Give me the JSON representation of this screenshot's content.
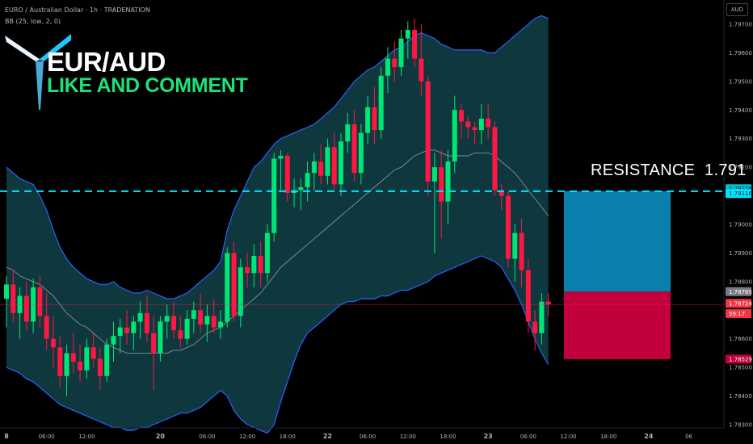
{
  "header": {
    "symbol_line": "EURO / Australian Dollar · 1h · TRADENATION",
    "indicator_line": "BB (25, low, 2, 0)"
  },
  "currency_badge": "AUD",
  "brand": {
    "title": "EUR/AUD",
    "subtitle": "LIKE AND COMMENT"
  },
  "resistance": {
    "label": "RESISTANCE",
    "level_text": "1.791",
    "price": 1.79116,
    "color": "#00e5ff"
  },
  "position_box": {
    "target_top": 1.79116,
    "entry": 1.78765,
    "stop_bottom": 1.78529,
    "target_color": "#0b7fad",
    "stop_color": "#c2003b"
  },
  "chart_data": {
    "type": "candlestick",
    "instrument": "EUR/AUD",
    "timeframe": "1h",
    "y_axis": {
      "min": 1.783,
      "max": 1.797,
      "ticks": [
        "1.79700",
        "1.79600",
        "1.79500",
        "1.79400",
        "1.79300",
        "1.79200",
        "1.79000",
        "1.78900",
        "1.78800",
        "1.78600",
        "1.78500",
        "1.78400",
        "1.78300"
      ]
    },
    "x_axis": {
      "ticks": [
        {
          "label": "8",
          "x": 0,
          "bold": true
        },
        {
          "label": "06:00",
          "x": 6,
          "bold": false
        },
        {
          "label": "12:00",
          "x": 12,
          "bold": false
        },
        {
          "label": "20",
          "x": 23,
          "bold": true
        },
        {
          "label": "06:00",
          "x": 30,
          "bold": false
        },
        {
          "label": "12:00",
          "x": 36,
          "bold": false
        },
        {
          "label": "18:00",
          "x": 42,
          "bold": false
        },
        {
          "label": "22",
          "x": 48,
          "bold": true
        },
        {
          "label": "06:00",
          "x": 54,
          "bold": false
        },
        {
          "label": "12:00",
          "x": 60,
          "bold": false
        },
        {
          "label": "18:00",
          "x": 66,
          "bold": false
        },
        {
          "label": "23",
          "x": 72,
          "bold": true
        },
        {
          "label": "06:00",
          "x": 78,
          "bold": false
        },
        {
          "label": "12:00",
          "x": 84,
          "bold": false
        },
        {
          "label": "18:00",
          "x": 90,
          "bold": false
        },
        {
          "label": "24",
          "x": 96,
          "bold": true
        },
        {
          "label": "06",
          "x": 102,
          "bold": false
        }
      ]
    },
    "price_tags": [
      {
        "text": "1.79119",
        "price": 1.79125,
        "bg": "#00bcd4",
        "fg": "#00363d"
      },
      {
        "text": "1.79116",
        "price": 1.79108,
        "bg": "#00e5ff",
        "fg": "#002b30"
      },
      {
        "text": "1.78765",
        "price": 1.78765,
        "bg": "#787b86",
        "fg": "#ffffff"
      },
      {
        "text": "1.78724",
        "price": 1.78724,
        "bg": "#f23645",
        "fg": "#ffffff"
      },
      {
        "text": "59:17",
        "price": 1.78688,
        "bg": "#f23645",
        "fg": "#ffffff"
      },
      {
        "text": "1.78529",
        "price": 1.78529,
        "bg": "#c2003b",
        "fg": "#ffffff"
      }
    ],
    "candles": [
      {
        "o": 1.7874,
        "h": 1.7882,
        "l": 1.7864,
        "c": 1.7879
      },
      {
        "o": 1.7879,
        "h": 1.7884,
        "l": 1.7866,
        "c": 1.7869
      },
      {
        "o": 1.7869,
        "h": 1.7878,
        "l": 1.786,
        "c": 1.7875
      },
      {
        "o": 1.7875,
        "h": 1.788,
        "l": 1.7863,
        "c": 1.7866
      },
      {
        "o": 1.7866,
        "h": 1.7881,
        "l": 1.7862,
        "c": 1.7878
      },
      {
        "o": 1.7878,
        "h": 1.7882,
        "l": 1.7864,
        "c": 1.7868
      },
      {
        "o": 1.7868,
        "h": 1.7876,
        "l": 1.7856,
        "c": 1.786
      },
      {
        "o": 1.786,
        "h": 1.7868,
        "l": 1.785,
        "c": 1.7857
      },
      {
        "o": 1.7857,
        "h": 1.7861,
        "l": 1.7843,
        "c": 1.7847
      },
      {
        "o": 1.7847,
        "h": 1.7858,
        "l": 1.784,
        "c": 1.7855
      },
      {
        "o": 1.7855,
        "h": 1.7862,
        "l": 1.7848,
        "c": 1.7852
      },
      {
        "o": 1.7852,
        "h": 1.7858,
        "l": 1.7845,
        "c": 1.7849
      },
      {
        "o": 1.7849,
        "h": 1.786,
        "l": 1.7846,
        "c": 1.7857
      },
      {
        "o": 1.7857,
        "h": 1.7862,
        "l": 1.785,
        "c": 1.7853
      },
      {
        "o": 1.7853,
        "h": 1.7857,
        "l": 1.7842,
        "c": 1.7847
      },
      {
        "o": 1.7847,
        "h": 1.786,
        "l": 1.7845,
        "c": 1.7858
      },
      {
        "o": 1.7858,
        "h": 1.7866,
        "l": 1.7852,
        "c": 1.7861
      },
      {
        "o": 1.7861,
        "h": 1.7867,
        "l": 1.7855,
        "c": 1.7864
      },
      {
        "o": 1.7864,
        "h": 1.787,
        "l": 1.7858,
        "c": 1.7862
      },
      {
        "o": 1.7862,
        "h": 1.7868,
        "l": 1.7856,
        "c": 1.7866
      },
      {
        "o": 1.7866,
        "h": 1.7873,
        "l": 1.786,
        "c": 1.7869
      },
      {
        "o": 1.7869,
        "h": 1.7875,
        "l": 1.7859,
        "c": 1.7862
      },
      {
        "o": 1.7862,
        "h": 1.7868,
        "l": 1.7842,
        "c": 1.7855
      },
      {
        "o": 1.7855,
        "h": 1.7868,
        "l": 1.7852,
        "c": 1.7866
      },
      {
        "o": 1.7866,
        "h": 1.7872,
        "l": 1.786,
        "c": 1.7868
      },
      {
        "o": 1.7868,
        "h": 1.7873,
        "l": 1.786,
        "c": 1.7863
      },
      {
        "o": 1.7863,
        "h": 1.7868,
        "l": 1.7857,
        "c": 1.786
      },
      {
        "o": 1.786,
        "h": 1.787,
        "l": 1.7858,
        "c": 1.7867
      },
      {
        "o": 1.7867,
        "h": 1.7873,
        "l": 1.7862,
        "c": 1.787
      },
      {
        "o": 1.787,
        "h": 1.7876,
        "l": 1.7862,
        "c": 1.7865
      },
      {
        "o": 1.7865,
        "h": 1.7872,
        "l": 1.7859,
        "c": 1.7868
      },
      {
        "o": 1.7868,
        "h": 1.7874,
        "l": 1.7862,
        "c": 1.7864
      },
      {
        "o": 1.7864,
        "h": 1.787,
        "l": 1.786,
        "c": 1.7866
      },
      {
        "o": 1.7866,
        "h": 1.7892,
        "l": 1.7864,
        "c": 1.789
      },
      {
        "o": 1.789,
        "h": 1.7894,
        "l": 1.7866,
        "c": 1.7868
      },
      {
        "o": 1.7868,
        "h": 1.7888,
        "l": 1.7864,
        "c": 1.7885
      },
      {
        "o": 1.7885,
        "h": 1.789,
        "l": 1.7878,
        "c": 1.7883
      },
      {
        "o": 1.7883,
        "h": 1.7893,
        "l": 1.7878,
        "c": 1.7889
      },
      {
        "o": 1.7889,
        "h": 1.7894,
        "l": 1.7878,
        "c": 1.7883
      },
      {
        "o": 1.7883,
        "h": 1.79,
        "l": 1.788,
        "c": 1.7897
      },
      {
        "o": 1.7897,
        "h": 1.7925,
        "l": 1.7894,
        "c": 1.7923
      },
      {
        "o": 1.7923,
        "h": 1.7926,
        "l": 1.7912,
        "c": 1.7924
      },
      {
        "o": 1.7924,
        "h": 1.7925,
        "l": 1.7908,
        "c": 1.7911
      },
      {
        "o": 1.7911,
        "h": 1.7916,
        "l": 1.7906,
        "c": 1.7912
      },
      {
        "o": 1.7912,
        "h": 1.7916,
        "l": 1.7905,
        "c": 1.7913
      },
      {
        "o": 1.7913,
        "h": 1.7922,
        "l": 1.7908,
        "c": 1.7918
      },
      {
        "o": 1.7918,
        "h": 1.7925,
        "l": 1.7912,
        "c": 1.7922
      },
      {
        "o": 1.7922,
        "h": 1.7928,
        "l": 1.7914,
        "c": 1.7917
      },
      {
        "o": 1.7917,
        "h": 1.793,
        "l": 1.7914,
        "c": 1.7927
      },
      {
        "o": 1.7927,
        "h": 1.7932,
        "l": 1.7912,
        "c": 1.7914
      },
      {
        "o": 1.7914,
        "h": 1.7932,
        "l": 1.791,
        "c": 1.7929
      },
      {
        "o": 1.7929,
        "h": 1.7939,
        "l": 1.7925,
        "c": 1.7935
      },
      {
        "o": 1.7935,
        "h": 1.794,
        "l": 1.7915,
        "c": 1.7918
      },
      {
        "o": 1.7918,
        "h": 1.7935,
        "l": 1.7914,
        "c": 1.7932
      },
      {
        "o": 1.7932,
        "h": 1.7945,
        "l": 1.7928,
        "c": 1.7941
      },
      {
        "o": 1.7941,
        "h": 1.7948,
        "l": 1.7928,
        "c": 1.7933
      },
      {
        "o": 1.7933,
        "h": 1.7955,
        "l": 1.793,
        "c": 1.7952
      },
      {
        "o": 1.7952,
        "h": 1.7962,
        "l": 1.7946,
        "c": 1.7958
      },
      {
        "o": 1.7958,
        "h": 1.7964,
        "l": 1.795,
        "c": 1.7955
      },
      {
        "o": 1.7955,
        "h": 1.7968,
        "l": 1.7952,
        "c": 1.7965
      },
      {
        "o": 1.7965,
        "h": 1.7971,
        "l": 1.7958,
        "c": 1.7968
      },
      {
        "o": 1.7968,
        "h": 1.7972,
        "l": 1.7955,
        "c": 1.7958
      },
      {
        "o": 1.7958,
        "h": 1.797,
        "l": 1.7945,
        "c": 1.795
      },
      {
        "o": 1.795,
        "h": 1.7952,
        "l": 1.791,
        "c": 1.7915
      },
      {
        "o": 1.7915,
        "h": 1.7925,
        "l": 1.789,
        "c": 1.792
      },
      {
        "o": 1.792,
        "h": 1.7926,
        "l": 1.7895,
        "c": 1.7908
      },
      {
        "o": 1.7908,
        "h": 1.7926,
        "l": 1.79,
        "c": 1.7922
      },
      {
        "o": 1.7922,
        "h": 1.7945,
        "l": 1.7918,
        "c": 1.794
      },
      {
        "o": 1.794,
        "h": 1.7942,
        "l": 1.793,
        "c": 1.7936
      },
      {
        "o": 1.7936,
        "h": 1.7938,
        "l": 1.793,
        "c": 1.7934
      },
      {
        "o": 1.7934,
        "h": 1.7936,
        "l": 1.7928,
        "c": 1.7933
      },
      {
        "o": 1.7933,
        "h": 1.7942,
        "l": 1.7928,
        "c": 1.7937
      },
      {
        "o": 1.7937,
        "h": 1.7942,
        "l": 1.793,
        "c": 1.7934
      },
      {
        "o": 1.7934,
        "h": 1.7936,
        "l": 1.791,
        "c": 1.7912
      },
      {
        "o": 1.7912,
        "h": 1.7914,
        "l": 1.7905,
        "c": 1.791
      },
      {
        "o": 1.791,
        "h": 1.7912,
        "l": 1.7885,
        "c": 1.7888
      },
      {
        "o": 1.7888,
        "h": 1.79,
        "l": 1.788,
        "c": 1.7897
      },
      {
        "o": 1.7897,
        "h": 1.7902,
        "l": 1.7878,
        "c": 1.7884
      },
      {
        "o": 1.7884,
        "h": 1.7888,
        "l": 1.7862,
        "c": 1.7866
      },
      {
        "o": 1.7866,
        "h": 1.787,
        "l": 1.7856,
        "c": 1.7862
      },
      {
        "o": 1.7862,
        "h": 1.7876,
        "l": 1.7858,
        "c": 1.7873
      },
      {
        "o": 1.7873,
        "h": 1.7876,
        "l": 1.7868,
        "c": 1.7872
      }
    ],
    "bollinger": {
      "upper": [
        1.792,
        1.7918,
        1.7916,
        1.7915,
        1.7914,
        1.791,
        1.7905,
        1.7898,
        1.7892,
        1.7888,
        1.7885,
        1.7883,
        1.7881,
        1.788,
        1.7879,
        1.7879,
        1.788,
        1.7878,
        1.7877,
        1.7876,
        1.7876,
        1.7877,
        1.7876,
        1.7875,
        1.7874,
        1.7874,
        1.7875,
        1.7876,
        1.7878,
        1.788,
        1.7882,
        1.7884,
        1.7887,
        1.7898,
        1.7905,
        1.791,
        1.7915,
        1.792,
        1.7922,
        1.7925,
        1.7928,
        1.793,
        1.7931,
        1.7932,
        1.7933,
        1.7934,
        1.7935,
        1.7937,
        1.7939,
        1.7941,
        1.7944,
        1.7947,
        1.795,
        1.7952,
        1.7954,
        1.7955,
        1.7957,
        1.7959,
        1.7961,
        1.7962,
        1.7964,
        1.7966,
        1.7967,
        1.7966,
        1.7965,
        1.7963,
        1.7962,
        1.7961,
        1.7961,
        1.7961,
        1.7961,
        1.7961,
        1.796,
        1.796,
        1.7962,
        1.7964,
        1.7966,
        1.7968,
        1.797,
        1.7972,
        1.7973,
        1.7972
      ],
      "middle": [
        1.7885,
        1.7884,
        1.7882,
        1.7881,
        1.788,
        1.7879,
        1.7877,
        1.7875,
        1.7872,
        1.7869,
        1.7867,
        1.7865,
        1.7864,
        1.7862,
        1.786,
        1.7858,
        1.7857,
        1.7856,
        1.7855,
        1.7855,
        1.7855,
        1.7855,
        1.7855,
        1.7855,
        1.7855,
        1.7856,
        1.7856,
        1.7857,
        1.7858,
        1.786,
        1.7862,
        1.7863,
        1.7864,
        1.7866,
        1.7868,
        1.787,
        1.7872,
        1.7874,
        1.7876,
        1.7879,
        1.7882,
        1.7885,
        1.7887,
        1.7889,
        1.7891,
        1.7893,
        1.7895,
        1.7897,
        1.7899,
        1.7901,
        1.7903,
        1.7905,
        1.7907,
        1.7909,
        1.7911,
        1.7913,
        1.7915,
        1.7917,
        1.7919,
        1.792,
        1.7922,
        1.7924,
        1.7925,
        1.7926,
        1.7926,
        1.7925,
        1.7924,
        1.7924,
        1.7924,
        1.7924,
        1.7925,
        1.7925,
        1.7925,
        1.7924,
        1.7922,
        1.792,
        1.7918,
        1.7915,
        1.7912,
        1.7909,
        1.7906,
        1.7903
      ],
      "lower": [
        1.785,
        1.7849,
        1.7848,
        1.7846,
        1.7845,
        1.7843,
        1.7841,
        1.7839,
        1.7837,
        1.7836,
        1.7835,
        1.7834,
        1.7833,
        1.7832,
        1.7831,
        1.783,
        1.7829,
        1.7829,
        1.7828,
        1.7828,
        1.7829,
        1.7829,
        1.783,
        1.7831,
        1.7832,
        1.7833,
        1.7834,
        1.7834,
        1.7835,
        1.7836,
        1.7838,
        1.784,
        1.7842,
        1.784,
        1.7835,
        1.7832,
        1.783,
        1.7829,
        1.7828,
        1.7827,
        1.783,
        1.7838,
        1.7845,
        1.7852,
        1.7858,
        1.7862,
        1.7864,
        1.7866,
        1.7868,
        1.787,
        1.7872,
        1.7873,
        1.7873,
        1.7874,
        1.7874,
        1.7874,
        1.7875,
        1.7875,
        1.7876,
        1.7877,
        1.7877,
        1.7878,
        1.7879,
        1.788,
        1.7882,
        1.7883,
        1.7884,
        1.7885,
        1.7886,
        1.7887,
        1.7888,
        1.7889,
        1.7888,
        1.7887,
        1.7885,
        1.7881,
        1.7877,
        1.7872,
        1.7866,
        1.786,
        1.7855,
        1.7851
      ]
    }
  }
}
